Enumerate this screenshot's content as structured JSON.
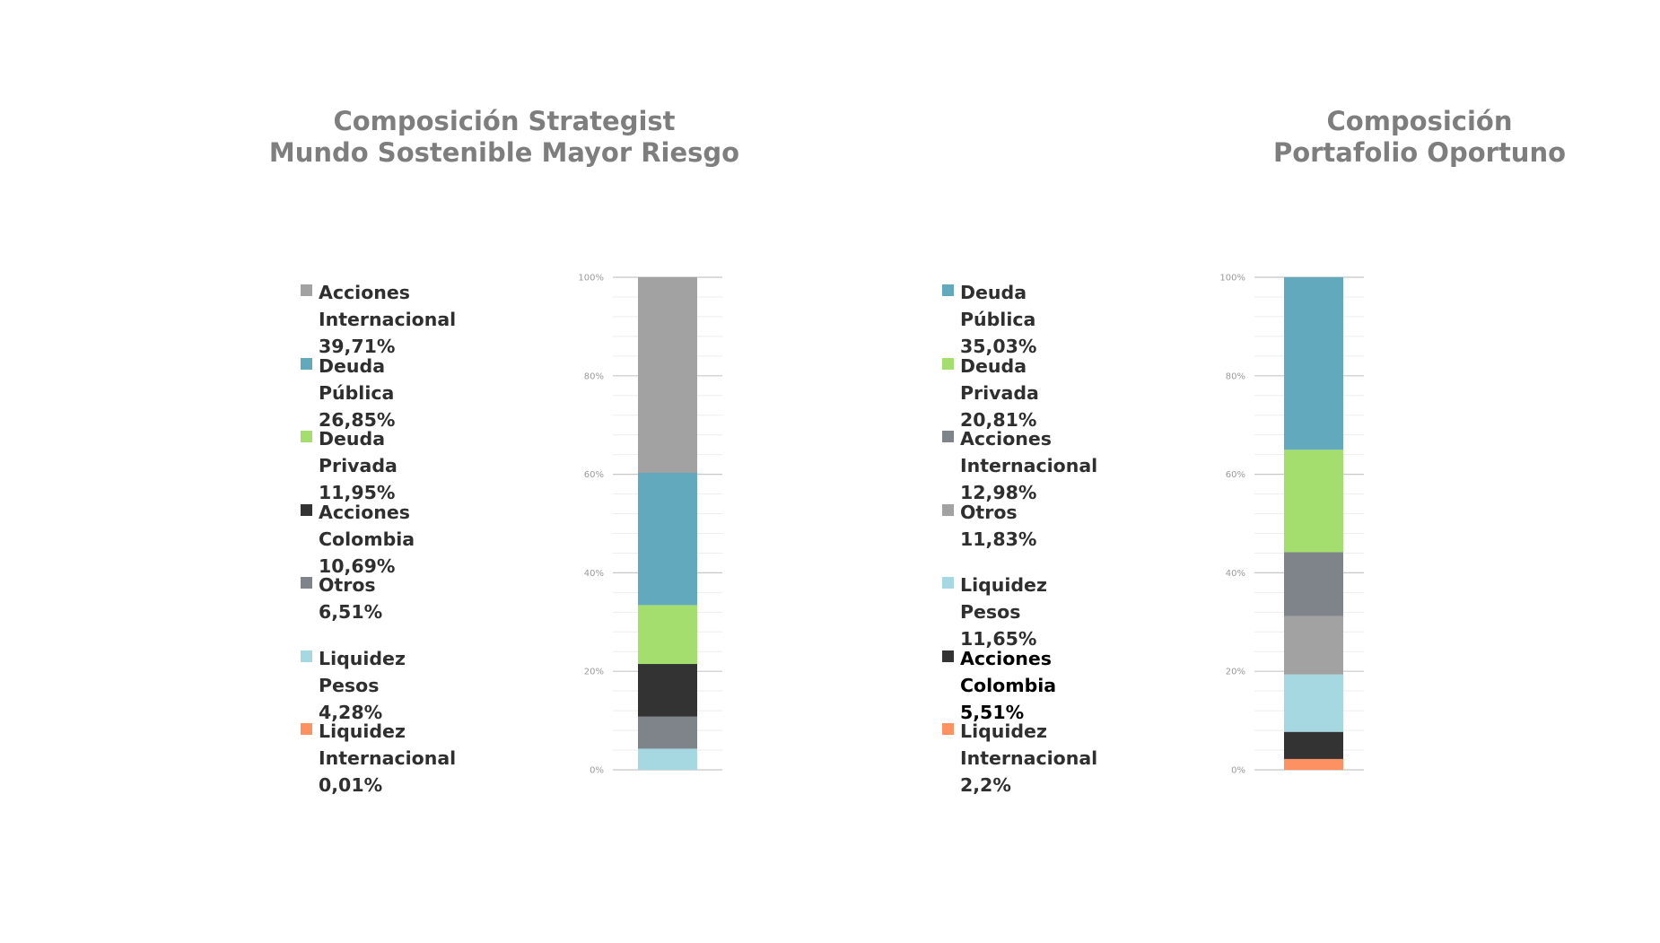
{
  "colors": {
    "acciones_internacional_light": "#a3a2a3",
    "deuda_publica": "#62a9bd",
    "deuda_privada": "#a3de6f",
    "acciones_colombia": "#333333",
    "otros_dark": "#7e8489",
    "liquidez_pesos": "#a6d8e2",
    "liquidez_internacional": "#fd9162",
    "title": "#7e7e7e",
    "gridline": "#c8c8c8",
    "minor_gridline": "#eeeeee"
  },
  "chart_data": [
    {
      "type": "bar",
      "stacked": true,
      "title": "Composición Strategist Mundo Sostenible Mayor Riesgo",
      "title_lines": [
        "Composición Strategist",
        "Mundo Sostenible Mayor Riesgo"
      ],
      "ylim": [
        0,
        100
      ],
      "yticks": [
        "0%",
        "20%",
        "40%",
        "60%",
        "80%",
        "100%"
      ],
      "legend": [
        {
          "label_lines": [
            "Acciones Internacional",
            "39,71%"
          ],
          "color": "#a3a2a3"
        },
        {
          "label_lines": [
            "Deuda Pública 26,85%"
          ],
          "color": "#62a9bd"
        },
        {
          "label_lines": [
            "Deuda Privada 11,95%"
          ],
          "color": "#a3de6f"
        },
        {
          "label_lines": [
            "Acciones Colombia",
            "10,69%"
          ],
          "color": "#333333"
        },
        {
          "label_lines": [
            "Otros 6,51%"
          ],
          "color": "#7e8489"
        },
        {
          "label_lines": [
            "Liquidez Pesos 4,28%"
          ],
          "color": "#a6d8e2"
        },
        {
          "label_lines": [
            "Liquidez Internacional",
            "0,01%"
          ],
          "color": "#fd9162"
        }
      ],
      "series": [
        {
          "name": "Liquidez Internacional",
          "value": 0.01,
          "color": "#fd9162"
        },
        {
          "name": "Liquidez Pesos",
          "value": 4.28,
          "color": "#a6d8e2"
        },
        {
          "name": "Otros",
          "value": 6.51,
          "color": "#7e8489"
        },
        {
          "name": "Acciones Colombia",
          "value": 10.69,
          "color": "#333333"
        },
        {
          "name": "Deuda Privada",
          "value": 11.95,
          "color": "#a3de6f"
        },
        {
          "name": "Deuda Pública",
          "value": 26.85,
          "color": "#62a9bd"
        },
        {
          "name": "Acciones Internacional",
          "value": 39.71,
          "color": "#a3a2a3"
        }
      ]
    },
    {
      "type": "bar",
      "stacked": true,
      "title": "Composición Portafolio Oportuno",
      "title_lines": [
        "Composición",
        "Portafolio Oportuno"
      ],
      "ylim": [
        0,
        100
      ],
      "yticks": [
        "0%",
        "20%",
        "40%",
        "60%",
        "80%",
        "100%"
      ],
      "legend": [
        {
          "label_lines": [
            "Deuda Pública 35,03%"
          ],
          "color": "#62a9bd"
        },
        {
          "label_lines": [
            "Deuda Privada 20,81%"
          ],
          "color": "#a3de6f"
        },
        {
          "label_lines": [
            "Acciones",
            "Internacional 12,98%"
          ],
          "color": "#7e8489"
        },
        {
          "label_lines": [
            "Otros 11,83%"
          ],
          "color": "#a3a2a3"
        },
        {
          "label_lines": [
            "Liquidez Pesos 11,65%"
          ],
          "color": "#a6d8e2"
        },
        {
          "label_lines": [
            "Acciones Colombia",
            "5,51%"
          ],
          "color": "#333333",
          "dark": true
        },
        {
          "label_lines": [
            "Liquidez Internacional",
            "2,2%"
          ],
          "color": "#fd9162"
        }
      ],
      "series": [
        {
          "name": "Liquidez Internacional",
          "value": 2.2,
          "color": "#fd9162"
        },
        {
          "name": "Acciones Colombia",
          "value": 5.51,
          "color": "#333333"
        },
        {
          "name": "Liquidez Pesos",
          "value": 11.65,
          "color": "#a6d8e2"
        },
        {
          "name": "Otros",
          "value": 11.83,
          "color": "#a3a2a3"
        },
        {
          "name": "Acciones Internacional",
          "value": 12.98,
          "color": "#7e8489"
        },
        {
          "name": "Deuda Privada",
          "value": 20.81,
          "color": "#a3de6f"
        },
        {
          "name": "Deuda Pública",
          "value": 35.03,
          "color": "#62a9bd"
        }
      ]
    }
  ]
}
